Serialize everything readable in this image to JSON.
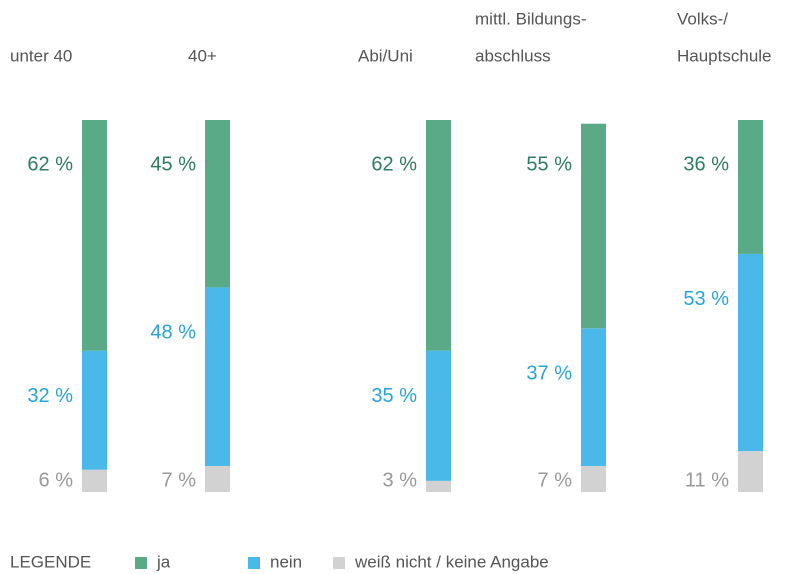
{
  "chart_data": {
    "type": "stacked-bar",
    "categories": [
      [
        "unter 40"
      ],
      [
        "40+"
      ],
      [
        "Abi/Uni"
      ],
      [
        "mittl. Bildungs-",
        "abschluss"
      ],
      [
        "Volks-/",
        "Hauptschule"
      ]
    ],
    "series": [
      {
        "name": "ja",
        "color": "#5aaa87",
        "label_color": "#2e7d5e",
        "values": [
          62,
          45,
          62,
          55,
          36
        ],
        "value_labels": [
          "62 %",
          "45 %",
          "62 %",
          "55 %",
          "36 %"
        ]
      },
      {
        "name": "nein",
        "color": "#4ab8e8",
        "label_color": "#2aa3d8",
        "values": [
          32,
          48,
          35,
          37,
          53
        ],
        "value_labels": [
          "32 %",
          "48 %",
          "35 %",
          "37 %",
          "53 %"
        ]
      },
      {
        "name": "weiß nicht / keine Angabe",
        "color": "#d2d2d2",
        "label_color": "#999999",
        "values": [
          6,
          7,
          3,
          7,
          11
        ],
        "value_labels": [
          "6 %",
          "7 %",
          "3 %",
          "7 %",
          "11 %"
        ]
      }
    ],
    "legend_title": "LEGENDE",
    "ylim": [
      0,
      100
    ]
  }
}
